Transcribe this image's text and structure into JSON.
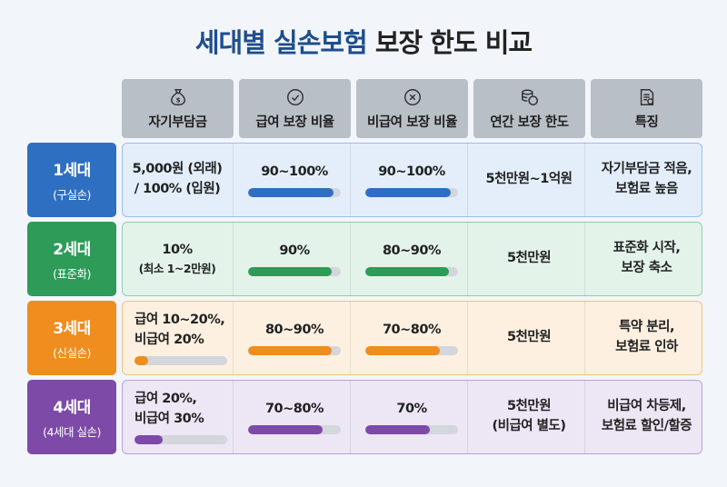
{
  "title": {
    "part1": "세대별 실손보험",
    "part2": " 보장 한도 비교"
  },
  "headers": [
    {
      "label": "자기부담금",
      "icon": "money-bag-icon"
    },
    {
      "label": "급여 보장 비율",
      "icon": "check-circle-icon"
    },
    {
      "label": "비급여 보장 비율",
      "icon": "x-circle-icon"
    },
    {
      "label": "연간 보장 한도",
      "icon": "coin-stack-icon"
    },
    {
      "label": "특징",
      "icon": "document-icon"
    }
  ],
  "colors": {
    "gen1": "#2f6fc1",
    "gen2": "#2e9b59",
    "gen3": "#ef8d1e",
    "gen4": "#7d4aa8"
  },
  "rows": [
    {
      "gen": "1세대",
      "sub": "(구실손)",
      "copay": [
        "5,000원 (외래)",
        "/ 100% (입원)"
      ],
      "copay_level": null,
      "covered": "90~100%",
      "covered_level": 0.92,
      "noncovered": "90~100%",
      "noncovered_level": 0.92,
      "limit": [
        "5천만원~1억원"
      ],
      "feature": [
        "자기부담금 적음,",
        "보험료 높음"
      ]
    },
    {
      "gen": "2세대",
      "sub": "(표준화)",
      "copay": [
        "10%",
        "(최소 1~2만원)"
      ],
      "copay_level": null,
      "covered": "90%",
      "covered_level": 0.9,
      "noncovered": "80~90%",
      "noncovered_level": 0.9,
      "limit": [
        "5천만원"
      ],
      "feature": [
        "표준화 시작,",
        "보장 축소"
      ]
    },
    {
      "gen": "3세대",
      "sub": "(신실손)",
      "copay": [
        "급여 10~20%,",
        "비급여 20%"
      ],
      "copay_level": 0.15,
      "covered": "80~90%",
      "covered_level": 0.9,
      "noncovered": "70~80%",
      "noncovered_level": 0.8,
      "limit": [
        "5천만원"
      ],
      "feature": [
        "특약 분리,",
        "보험료 인하"
      ]
    },
    {
      "gen": "4세대",
      "sub": "(4세대 실손)",
      "copay": [
        "급여 20%,",
        "비급여 30%"
      ],
      "copay_level": 0.3,
      "covered": "70~80%",
      "covered_level": 0.8,
      "noncovered": "70%",
      "noncovered_level": 0.7,
      "limit": [
        "5천만원",
        "(비급여 별도)"
      ],
      "feature": [
        "비급여 차등제,",
        "보험료 할인/할증"
      ]
    }
  ]
}
